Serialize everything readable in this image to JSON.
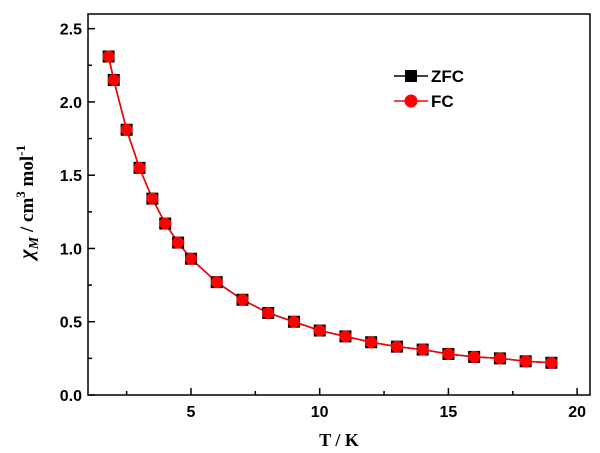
{
  "chart_data": {
    "type": "line",
    "xlabel": "T / K",
    "ylabel": {
      "symbol": "χ",
      "subscript": "M",
      "unit_a": " / cm",
      "sup_a": "3",
      "unit_b": " mol",
      "sup_b": "-1"
    },
    "xlim": [
      1,
      20.5
    ],
    "ylim": [
      0,
      2.6
    ],
    "xticks": [
      5,
      10,
      15,
      20
    ],
    "yticks": [
      0.0,
      0.5,
      1.0,
      1.5,
      2.0,
      2.5
    ],
    "xtick_labels": [
      "5",
      "10",
      "15",
      "20"
    ],
    "ytick_labels": [
      "0.0",
      "0.5",
      "1.0",
      "1.5",
      "2.0",
      "2.5"
    ],
    "grid": false,
    "legend_position": "top-right",
    "x": [
      1.8,
      2,
      2.5,
      3,
      3.5,
      4,
      4.5,
      5,
      6,
      7,
      8,
      9,
      10,
      11,
      12,
      13,
      14,
      15,
      16,
      17,
      18,
      19
    ],
    "series": [
      {
        "name": "ZFC",
        "marker": "square",
        "color": "#000000",
        "values": [
          2.31,
          2.15,
          1.81,
          1.55,
          1.34,
          1.17,
          1.04,
          0.93,
          0.77,
          0.65,
          0.56,
          0.5,
          0.44,
          0.4,
          0.36,
          0.33,
          0.31,
          0.28,
          0.26,
          0.25,
          0.23,
          0.22
        ]
      },
      {
        "name": "FC",
        "marker": "circle",
        "color": "#ff0000",
        "values": [
          2.31,
          2.15,
          1.81,
          1.55,
          1.34,
          1.17,
          1.04,
          0.93,
          0.77,
          0.65,
          0.56,
          0.5,
          0.44,
          0.4,
          0.36,
          0.33,
          0.31,
          0.28,
          0.26,
          0.25,
          0.23,
          0.22
        ]
      }
    ]
  }
}
